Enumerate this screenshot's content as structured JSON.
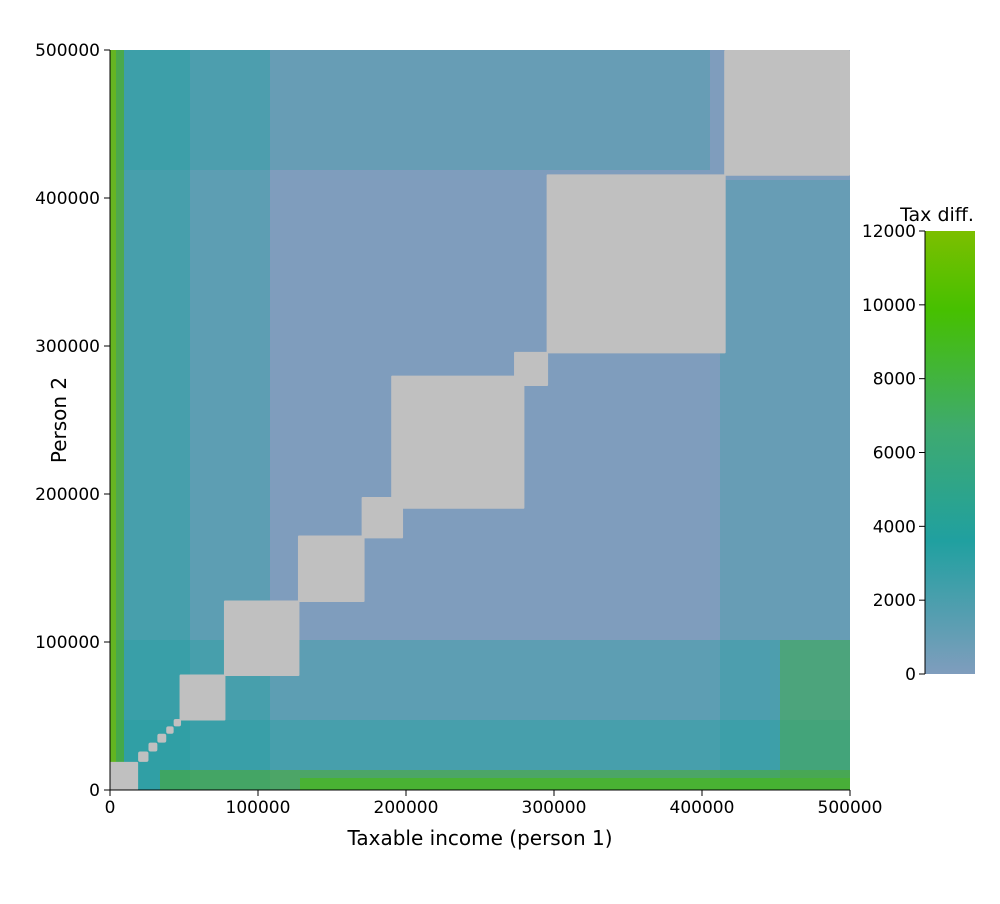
{
  "chart_data": {
    "type": "heatmap",
    "title": "",
    "xlabel": "Taxable income (person 1)",
    "ylabel": "Person 2",
    "xlim": [
      0,
      500000
    ],
    "ylim": [
      0,
      500000
    ],
    "x_ticks": [
      0,
      100000,
      200000,
      300000,
      400000,
      500000
    ],
    "y_ticks": [
      0,
      100000,
      200000,
      300000,
      400000,
      500000
    ],
    "colorbar": {
      "label": "Tax diff.",
      "range": [
        0,
        12000
      ],
      "ticks": [
        0,
        2000,
        4000,
        6000,
        8000,
        10000,
        12000
      ],
      "colors": [
        "#7f9dbd",
        "#20a0a0",
        "#3eaa70",
        "#46c000",
        "#7cbf00"
      ]
    },
    "zero_difference_color": "#c0c0c0",
    "zero_difference_regions": [
      {
        "x": [
          0,
          19000
        ],
        "y": [
          0,
          19000
        ]
      },
      {
        "x": [
          47000,
          78000
        ],
        "y": [
          47000,
          78000
        ]
      },
      {
        "x": [
          77000,
          128000
        ],
        "y": [
          77000,
          128000
        ]
      },
      {
        "x": [
          127000,
          172000
        ],
        "y": [
          127000,
          172000
        ]
      },
      {
        "x": [
          170000,
          198000
        ],
        "y": [
          170000,
          198000
        ]
      },
      {
        "x": [
          190000,
          280000
        ],
        "y": [
          190000,
          280000
        ]
      },
      {
        "x": [
          273000,
          296000
        ],
        "y": [
          273000,
          296000
        ]
      },
      {
        "x": [
          295000,
          416000
        ],
        "y": [
          295000,
          416000
        ]
      },
      {
        "x": [
          415000,
          500000
        ],
        "y": [
          415000,
          500000
        ]
      }
    ]
  }
}
